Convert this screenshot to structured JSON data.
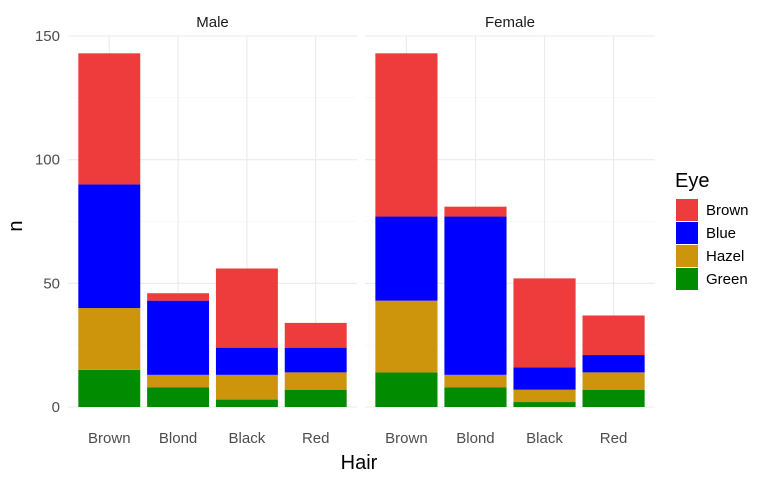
{
  "chart_data": {
    "type": "bar",
    "stacked": true,
    "facets": [
      "Male",
      "Female"
    ],
    "categories": [
      "Brown",
      "Blond",
      "Black",
      "Red"
    ],
    "xlabel": "Hair",
    "ylabel": "n",
    "ylim": [
      0,
      150
    ],
    "yticks": [
      0,
      50,
      100,
      150
    ],
    "grid": true,
    "legend": {
      "title": "Eye",
      "position": "right"
    },
    "series": [
      {
        "name": "Green",
        "color": "#008b00",
        "values": {
          "Male": [
            15,
            8,
            3,
            7
          ],
          "Female": [
            14,
            8,
            2,
            7
          ]
        }
      },
      {
        "name": "Hazel",
        "color": "#cd950c",
        "values": {
          "Male": [
            25,
            5,
            10,
            7
          ],
          "Female": [
            29,
            5,
            5,
            7
          ]
        }
      },
      {
        "name": "Blue",
        "color": "#0000ff",
        "values": {
          "Male": [
            50,
            30,
            11,
            10
          ],
          "Female": [
            34,
            64,
            9,
            7
          ]
        }
      },
      {
        "name": "Brown",
        "color": "#ee3b3b",
        "values": {
          "Male": [
            53,
            3,
            32,
            10
          ],
          "Female": [
            66,
            4,
            36,
            16
          ]
        }
      }
    ],
    "legend_order": [
      "Brown",
      "Blue",
      "Hazel",
      "Green"
    ]
  }
}
